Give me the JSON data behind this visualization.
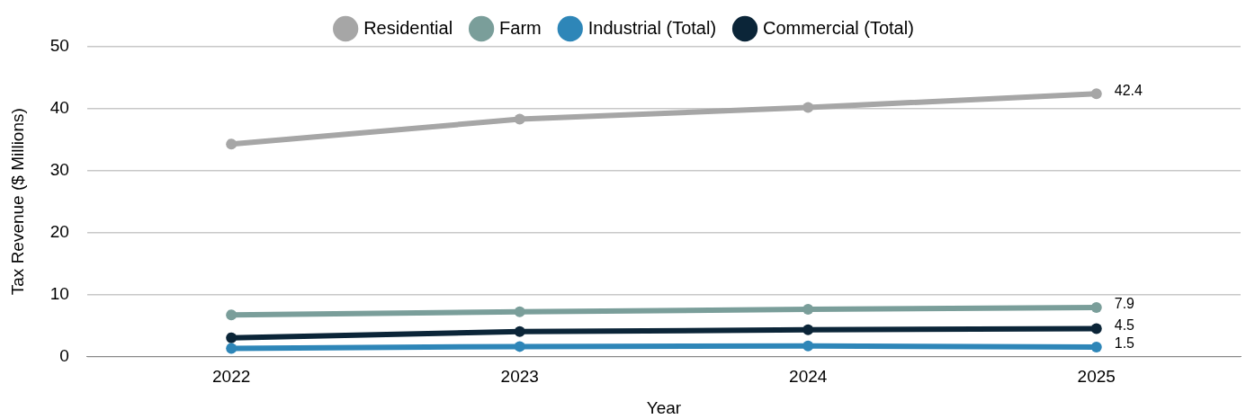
{
  "chart_data": {
    "type": "line",
    "xlabel": "Year",
    "ylabel": "Tax Revenue ($ Millions)",
    "categories": [
      "2022",
      "2023",
      "2024",
      "2025"
    ],
    "series": [
      {
        "name": "Residential",
        "color": "#a6a6a6",
        "values": [
          34.3,
          38.3,
          40.2,
          42.4
        ],
        "value_labels": [
          null,
          null,
          null,
          "42.4"
        ]
      },
      {
        "name": "Farm",
        "color": "#7a9e9a",
        "values": [
          6.7,
          7.2,
          7.6,
          7.9
        ],
        "value_labels": [
          null,
          null,
          null,
          "7.9"
        ]
      },
      {
        "name": "Industrial (Total)",
        "color": "#2e86b8",
        "values": [
          1.3,
          1.6,
          1.7,
          1.5
        ],
        "value_labels": [
          null,
          null,
          null,
          "1.5"
        ]
      },
      {
        "name": "Commercial (Total)",
        "color": "#0b2538",
        "values": [
          3.0,
          4.0,
          4.3,
          4.5
        ],
        "value_labels": [
          null,
          null,
          null,
          "4.5"
        ]
      }
    ],
    "ylim": [
      0,
      50
    ],
    "yticks": [
      0,
      10,
      20,
      30,
      40,
      50
    ],
    "grid": "y",
    "legend": "top",
    "marker": "circle",
    "line_style": "solid"
  }
}
